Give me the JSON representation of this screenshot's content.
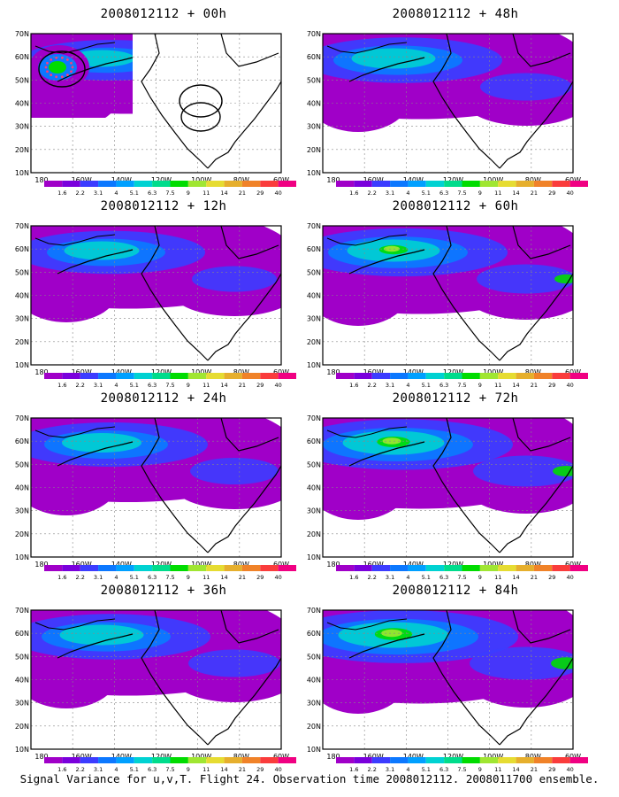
{
  "panels": [
    {
      "title": "2008012112 + 00h",
      "intensity": 0.35,
      "has_obs_marks": true
    },
    {
      "title": "2008012112 + 48h",
      "intensity": 0.55
    },
    {
      "title": "2008012112 + 12h",
      "intensity": 0.45
    },
    {
      "title": "2008012112 + 60h",
      "intensity": 0.65
    },
    {
      "title": "2008012112 + 24h",
      "intensity": 0.5
    },
    {
      "title": "2008012112 + 72h",
      "intensity": 0.75
    },
    {
      "title": "2008012112 + 36h",
      "intensity": 0.55
    },
    {
      "title": "2008012112 + 84h",
      "intensity": 0.85
    }
  ],
  "axes": {
    "lon_labels": [
      "180",
      "160W",
      "140W",
      "120W",
      "100W",
      "80W",
      "60W"
    ],
    "lat_labels": [
      "70N",
      "60N",
      "50N",
      "40N",
      "30N",
      "20N",
      "10N"
    ]
  },
  "colorbar": {
    "labels": [
      "1.6",
      "2.2",
      "3.1",
      "4",
      "5.1",
      "6.3",
      "7.5",
      "9",
      "11",
      "14",
      "21",
      "29",
      "40"
    ],
    "colors": [
      "#a000c8",
      "#7a00dc",
      "#3c3cff",
      "#0c78ff",
      "#00a0ff",
      "#00d2d2",
      "#00dc8c",
      "#00dc00",
      "#a0e632",
      "#e6dc32",
      "#e6af2d",
      "#f08228",
      "#fa3c3c",
      "#f00082"
    ]
  },
  "caption": "Signal Variance for u,v,T. Flight 24. Observation time 2008012112. 2008011700 ensemble."
}
